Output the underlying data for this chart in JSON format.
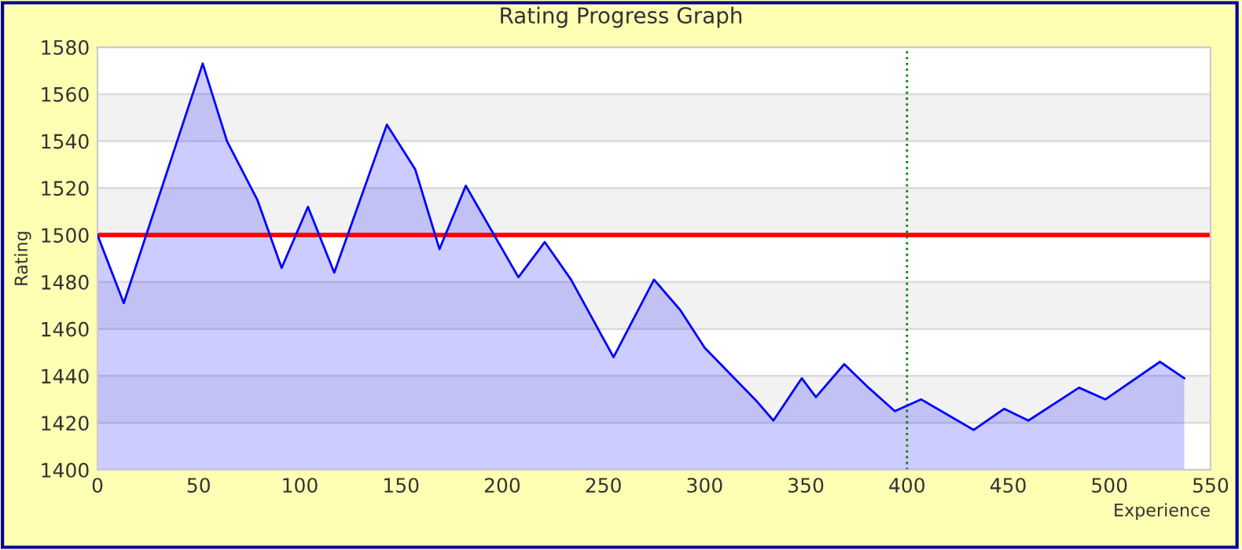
{
  "chart_data": {
    "type": "area",
    "title": "Rating Progress Graph",
    "xlabel": "Experience",
    "ylabel": "Rating",
    "series": [
      {
        "color": "#0000ff",
        "x": [
          0,
          13,
          52,
          64,
          79,
          91,
          104,
          117,
          143,
          157,
          169,
          182,
          208,
          221,
          234,
          255,
          275,
          288,
          300,
          326,
          334,
          348,
          355,
          369,
          381,
          394,
          407,
          433,
          448,
          460,
          485,
          498,
          525,
          537
        ],
        "values": [
          1500,
          1471,
          1573,
          1540,
          1515,
          1486,
          1512,
          1484,
          1547,
          1528,
          1494,
          1521,
          1482,
          1497,
          1481,
          1448,
          1481,
          1468,
          1452,
          1429,
          1421,
          1439,
          1431,
          1445,
          1435,
          1425,
          1430,
          1417,
          1426,
          1421,
          1435,
          1430,
          1446,
          1439
        ]
      }
    ],
    "ref_lines": [
      {
        "axis": "y",
        "value": 1500,
        "color": "#ff0000",
        "line_style": "solid"
      },
      {
        "axis": "x",
        "value": 400,
        "color": "#008000",
        "line_style": "dotted"
      }
    ],
    "xlim": [
      0,
      550
    ],
    "xticks": [
      0,
      50,
      100,
      150,
      200,
      250,
      300,
      350,
      400,
      450,
      500,
      550
    ],
    "ylim": [
      1400,
      1580
    ],
    "yticks": [
      1400,
      1420,
      1440,
      1460,
      1480,
      1500,
      1520,
      1540,
      1560,
      1580
    ],
    "grid": "y",
    "legend": false
  }
}
